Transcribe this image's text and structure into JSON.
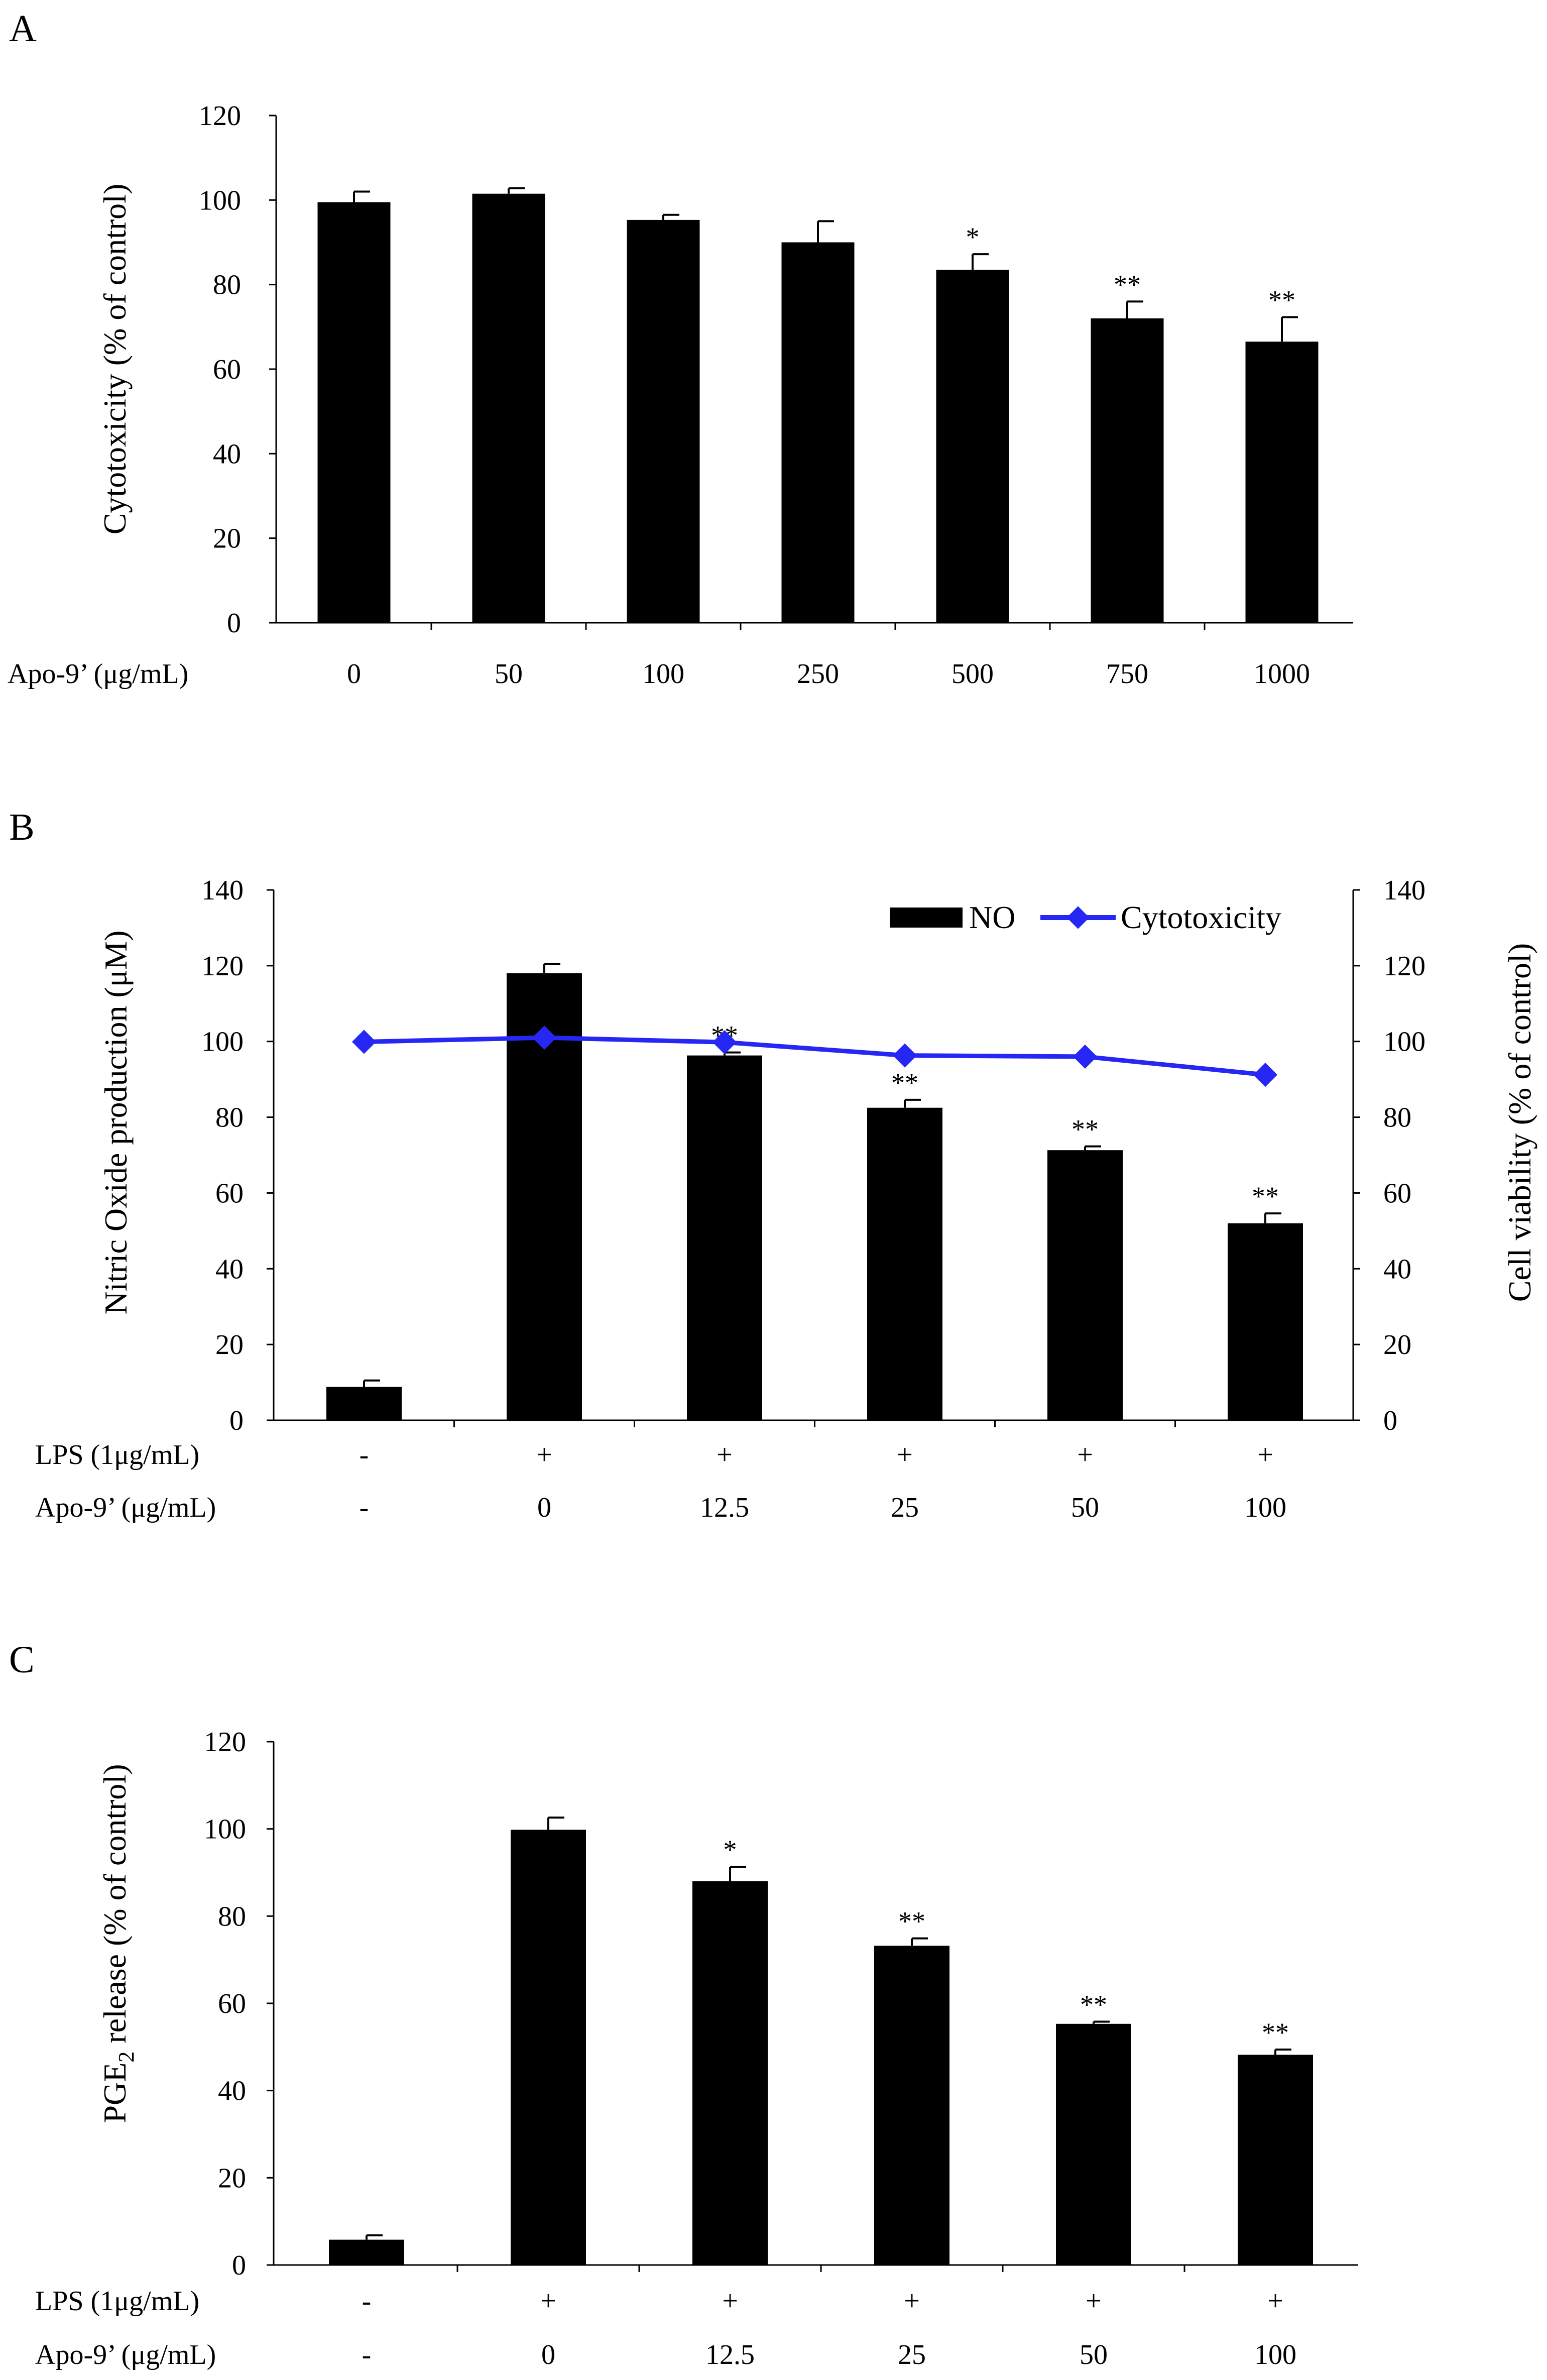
{
  "chart_data": [
    {
      "panel_label": "A",
      "type": "bar",
      "ylabel": "Cytotoxicity (% of control)",
      "ylim": [
        0,
        120
      ],
      "yticks": [
        "0",
        "20",
        "40",
        "60",
        "80",
        "100",
        "120"
      ],
      "row_labels": [
        "Apo-9’ (μg/mL)"
      ],
      "categories": [
        "0",
        "50",
        "100",
        "250",
        "500",
        "750",
        "1000"
      ],
      "values": [
        99.5,
        101.5,
        95.3,
        90,
        83.5,
        72,
        66.5
      ],
      "errors": [
        2.5,
        1.3,
        1.2,
        5,
        3.7,
        4,
        5.8
      ],
      "significance": [
        "",
        "",
        "",
        "",
        "*",
        "**",
        "**"
      ]
    },
    {
      "panel_label": "B",
      "type": "bar+line",
      "ylabel": "Nitric Oxide production (μM)",
      "y2label": "Cell viability (% of control)",
      "ylim": [
        0,
        140
      ],
      "yticks": [
        "0",
        "20",
        "40",
        "60",
        "80",
        "100",
        "120",
        "140"
      ],
      "y2ticks": [
        "0",
        "20",
        "40",
        "60",
        "80",
        "100",
        "120",
        "140"
      ],
      "row_labels": [
        "LPS (1μg/mL)",
        "Apo-9’ (μg/mL)"
      ],
      "lps": [
        "-",
        "+",
        "+",
        "+",
        "+",
        "+"
      ],
      "categories": [
        "-",
        "0",
        "12.5",
        "25",
        "50",
        "100"
      ],
      "series": [
        {
          "name": "NO",
          "values": [
            8.8,
            118,
            96.3,
            82.5,
            71.3,
            52
          ],
          "errors": [
            1.7,
            2.5,
            0.8,
            2.1,
            1,
            2.6
          ]
        },
        {
          "name": "Cytotoxicity",
          "values": [
            99.9,
            101,
            99.8,
            96.3,
            96,
            91.2
          ],
          "color": "#2727f5"
        }
      ],
      "significance": [
        "",
        "",
        "**",
        "**",
        "**",
        "**"
      ],
      "legend": [
        "NO",
        "Cytotoxicity"
      ]
    },
    {
      "panel_label": "C",
      "type": "bar",
      "ylabel_prefix": "PGE",
      "ylabel_sub": "2",
      "ylabel_suffix": " release (% of control)",
      "ylim": [
        0,
        120
      ],
      "yticks": [
        "0",
        "20",
        "40",
        "60",
        "80",
        "100",
        "120"
      ],
      "row_labels": [
        "LPS (1μg/mL)",
        "Apo-9’ (μg/mL)"
      ],
      "lps": [
        "-",
        "+",
        "+",
        "+",
        "+",
        "+"
      ],
      "categories": [
        "-",
        "0",
        "12.5",
        "25",
        "50",
        "100"
      ],
      "values": [
        5.8,
        99.8,
        88,
        73.2,
        55.3,
        48.2
      ],
      "errors": [
        1,
        2.8,
        3.3,
        1.7,
        0.5,
        1.2
      ],
      "significance": [
        "",
        "",
        "*",
        "**",
        "**",
        "**"
      ]
    }
  ]
}
